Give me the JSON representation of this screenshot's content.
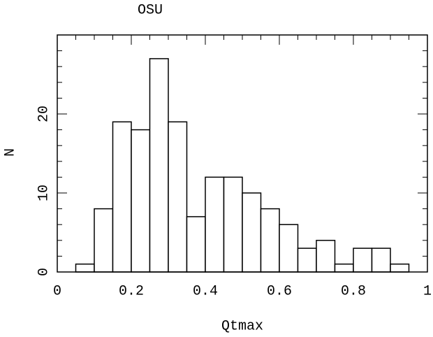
{
  "chart_data": {
    "type": "histogram",
    "title": "OSU",
    "xlabel": "Qtmax",
    "ylabel": "N",
    "bins": [
      0.05,
      0.1,
      0.15,
      0.2,
      0.25,
      0.3,
      0.35,
      0.4,
      0.45,
      0.5,
      0.55,
      0.6,
      0.65,
      0.7,
      0.75,
      0.8,
      0.85,
      0.9,
      0.95
    ],
    "values": [
      1,
      8,
      19,
      18,
      27,
      19,
      7,
      12,
      12,
      10,
      8,
      6,
      3,
      4,
      1,
      3,
      3,
      1
    ],
    "color": "#ffffff",
    "xlim": [
      0,
      1
    ],
    "xticks": [
      0,
      0.2,
      0.4,
      0.6,
      0.8,
      1
    ],
    "ylim": [
      0,
      30
    ],
    "yticks": [
      0,
      10,
      20
    ]
  }
}
